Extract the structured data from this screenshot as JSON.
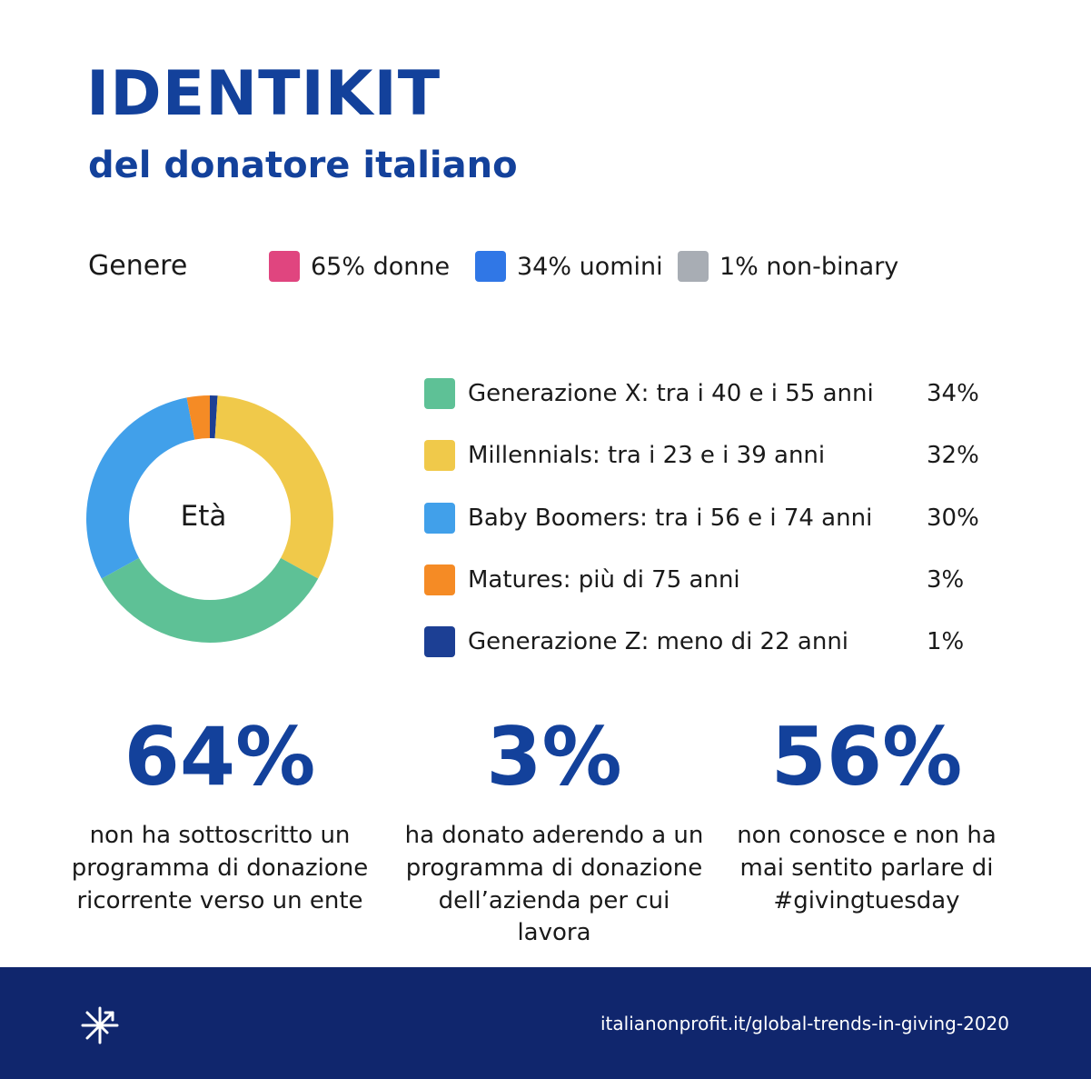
{
  "header": {
    "title": "IDENTIKIT",
    "subtitle": "del donatore italiano"
  },
  "gender": {
    "label": "Genere",
    "items": [
      {
        "text": "65% donne",
        "color": "#e0457f"
      },
      {
        "text": "34% uomini",
        "color": "#3077e6"
      },
      {
        "text": "1% non-binary",
        "color": "#a8adb4"
      }
    ]
  },
  "chart_data": {
    "type": "pie",
    "center_label": "Età",
    "series": [
      {
        "name": "Generazione Z: meno di 22 anni",
        "value": 1,
        "value_label": "1%",
        "color": "#1c3f94"
      },
      {
        "name": "Millennials: tra i 23 e i 39 anni",
        "value": 32,
        "value_label": "32%",
        "color": "#f0c94a"
      },
      {
        "name": "Generazione X: tra i 40 e i 55 anni",
        "value": 34,
        "value_label": "34%",
        "color": "#5ec196"
      },
      {
        "name": "Baby Boomers: tra i 56 e i 74 anni",
        "value": 30,
        "value_label": "30%",
        "color": "#41a0ea"
      },
      {
        "name": "Matures: più di 75 anni",
        "value": 3,
        "value_label": "3%",
        "color": "#f58b25"
      }
    ],
    "legend_order": [
      2,
      1,
      3,
      4,
      0
    ],
    "legend_position": "right"
  },
  "stats": [
    {
      "value": "64%",
      "desc": "non ha sottoscritto un programma di donazione ricorrente verso un ente"
    },
    {
      "value": "3%",
      "desc": "ha donato aderendo a un programma di donazione dell’azienda per cui lavora"
    },
    {
      "value": "56%",
      "desc": "non conosce e non ha mai sentito parlare di #givingtuesday"
    }
  ],
  "footer": {
    "url": "italianonprofit.it/global-trends-in-giving-2020",
    "logo_icon": "asterisk-logo-icon"
  }
}
